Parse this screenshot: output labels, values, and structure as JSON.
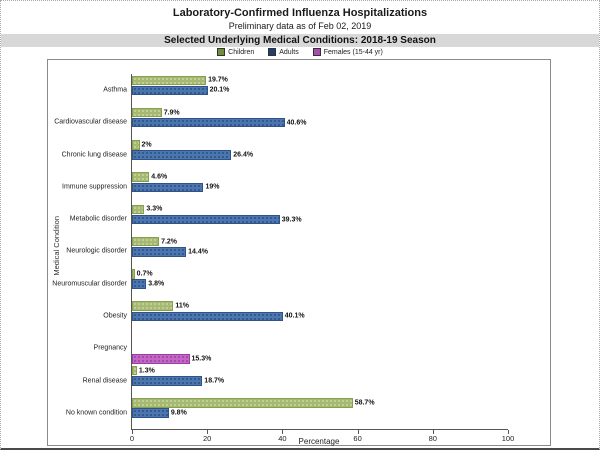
{
  "chart_data": {
    "type": "bar",
    "orientation": "horizontal",
    "title": "Laboratory-Confirmed Influenza Hospitalizations",
    "subtitle": "Preliminary data as of Feb 02, 2019",
    "band_title": "Selected Underlying Medical Conditions: 2018-19 Season",
    "xlabel": "Percentage",
    "ylabel": "Medical Condition",
    "xlim": [
      0,
      100
    ],
    "xticks": [
      0,
      20,
      40,
      60,
      80,
      100
    ],
    "grid": false,
    "legend_position": "top-center",
    "categories": [
      "Asthma",
      "Cardiovascular disease",
      "Chronic lung disease",
      "Immune suppression",
      "Metabolic disorder",
      "Neurologic disorder",
      "Neuromuscular disorder",
      "Obesity",
      "Pregnancy",
      "Renal disease",
      "No known condition"
    ],
    "series": [
      {
        "key": "children",
        "name": "Children",
        "swatch_color": "#6F8F3A",
        "fill_color": "#A5B972",
        "dot_color": "#C9D6A1",
        "border_color": "#87A050",
        "values": [
          19.7,
          7.9,
          2,
          4.6,
          3.3,
          7.2,
          0.7,
          11,
          null,
          1.3,
          58.7
        ],
        "labels": [
          "19.7%",
          "7.9%",
          "2%",
          "4.6%",
          "3.3%",
          "7.2%",
          "0.7%",
          "11%",
          "",
          "1.3%",
          "58.7%"
        ]
      },
      {
        "key": "adults",
        "name": "Adults",
        "swatch_color": "#1F3E73",
        "fill_color": "#4C77AE",
        "dot_color": "#2C4F86",
        "border_color": "#2F5388",
        "values": [
          20.1,
          40.6,
          26.4,
          19,
          39.3,
          14.4,
          3.8,
          40.1,
          null,
          18.7,
          9.8
        ],
        "labels": [
          "20.1%",
          "40.6%",
          "26.4%",
          "19%",
          "39.3%",
          "14.4%",
          "3.8%",
          "40.1%",
          "",
          "18.7%",
          "9.8%"
        ]
      },
      {
        "key": "females",
        "name": "Females (15-44 yr)",
        "swatch_color": "#A84FAE",
        "fill_color": "#C167C4",
        "dot_color": "#A13CA6",
        "border_color": "#9C3BA1",
        "values": [
          null,
          null,
          null,
          null,
          null,
          null,
          null,
          null,
          15.3,
          null,
          null
        ],
        "labels": [
          "",
          "",
          "",
          "",
          "",
          "",
          "",
          "",
          "15.3%",
          "",
          ""
        ]
      }
    ]
  }
}
